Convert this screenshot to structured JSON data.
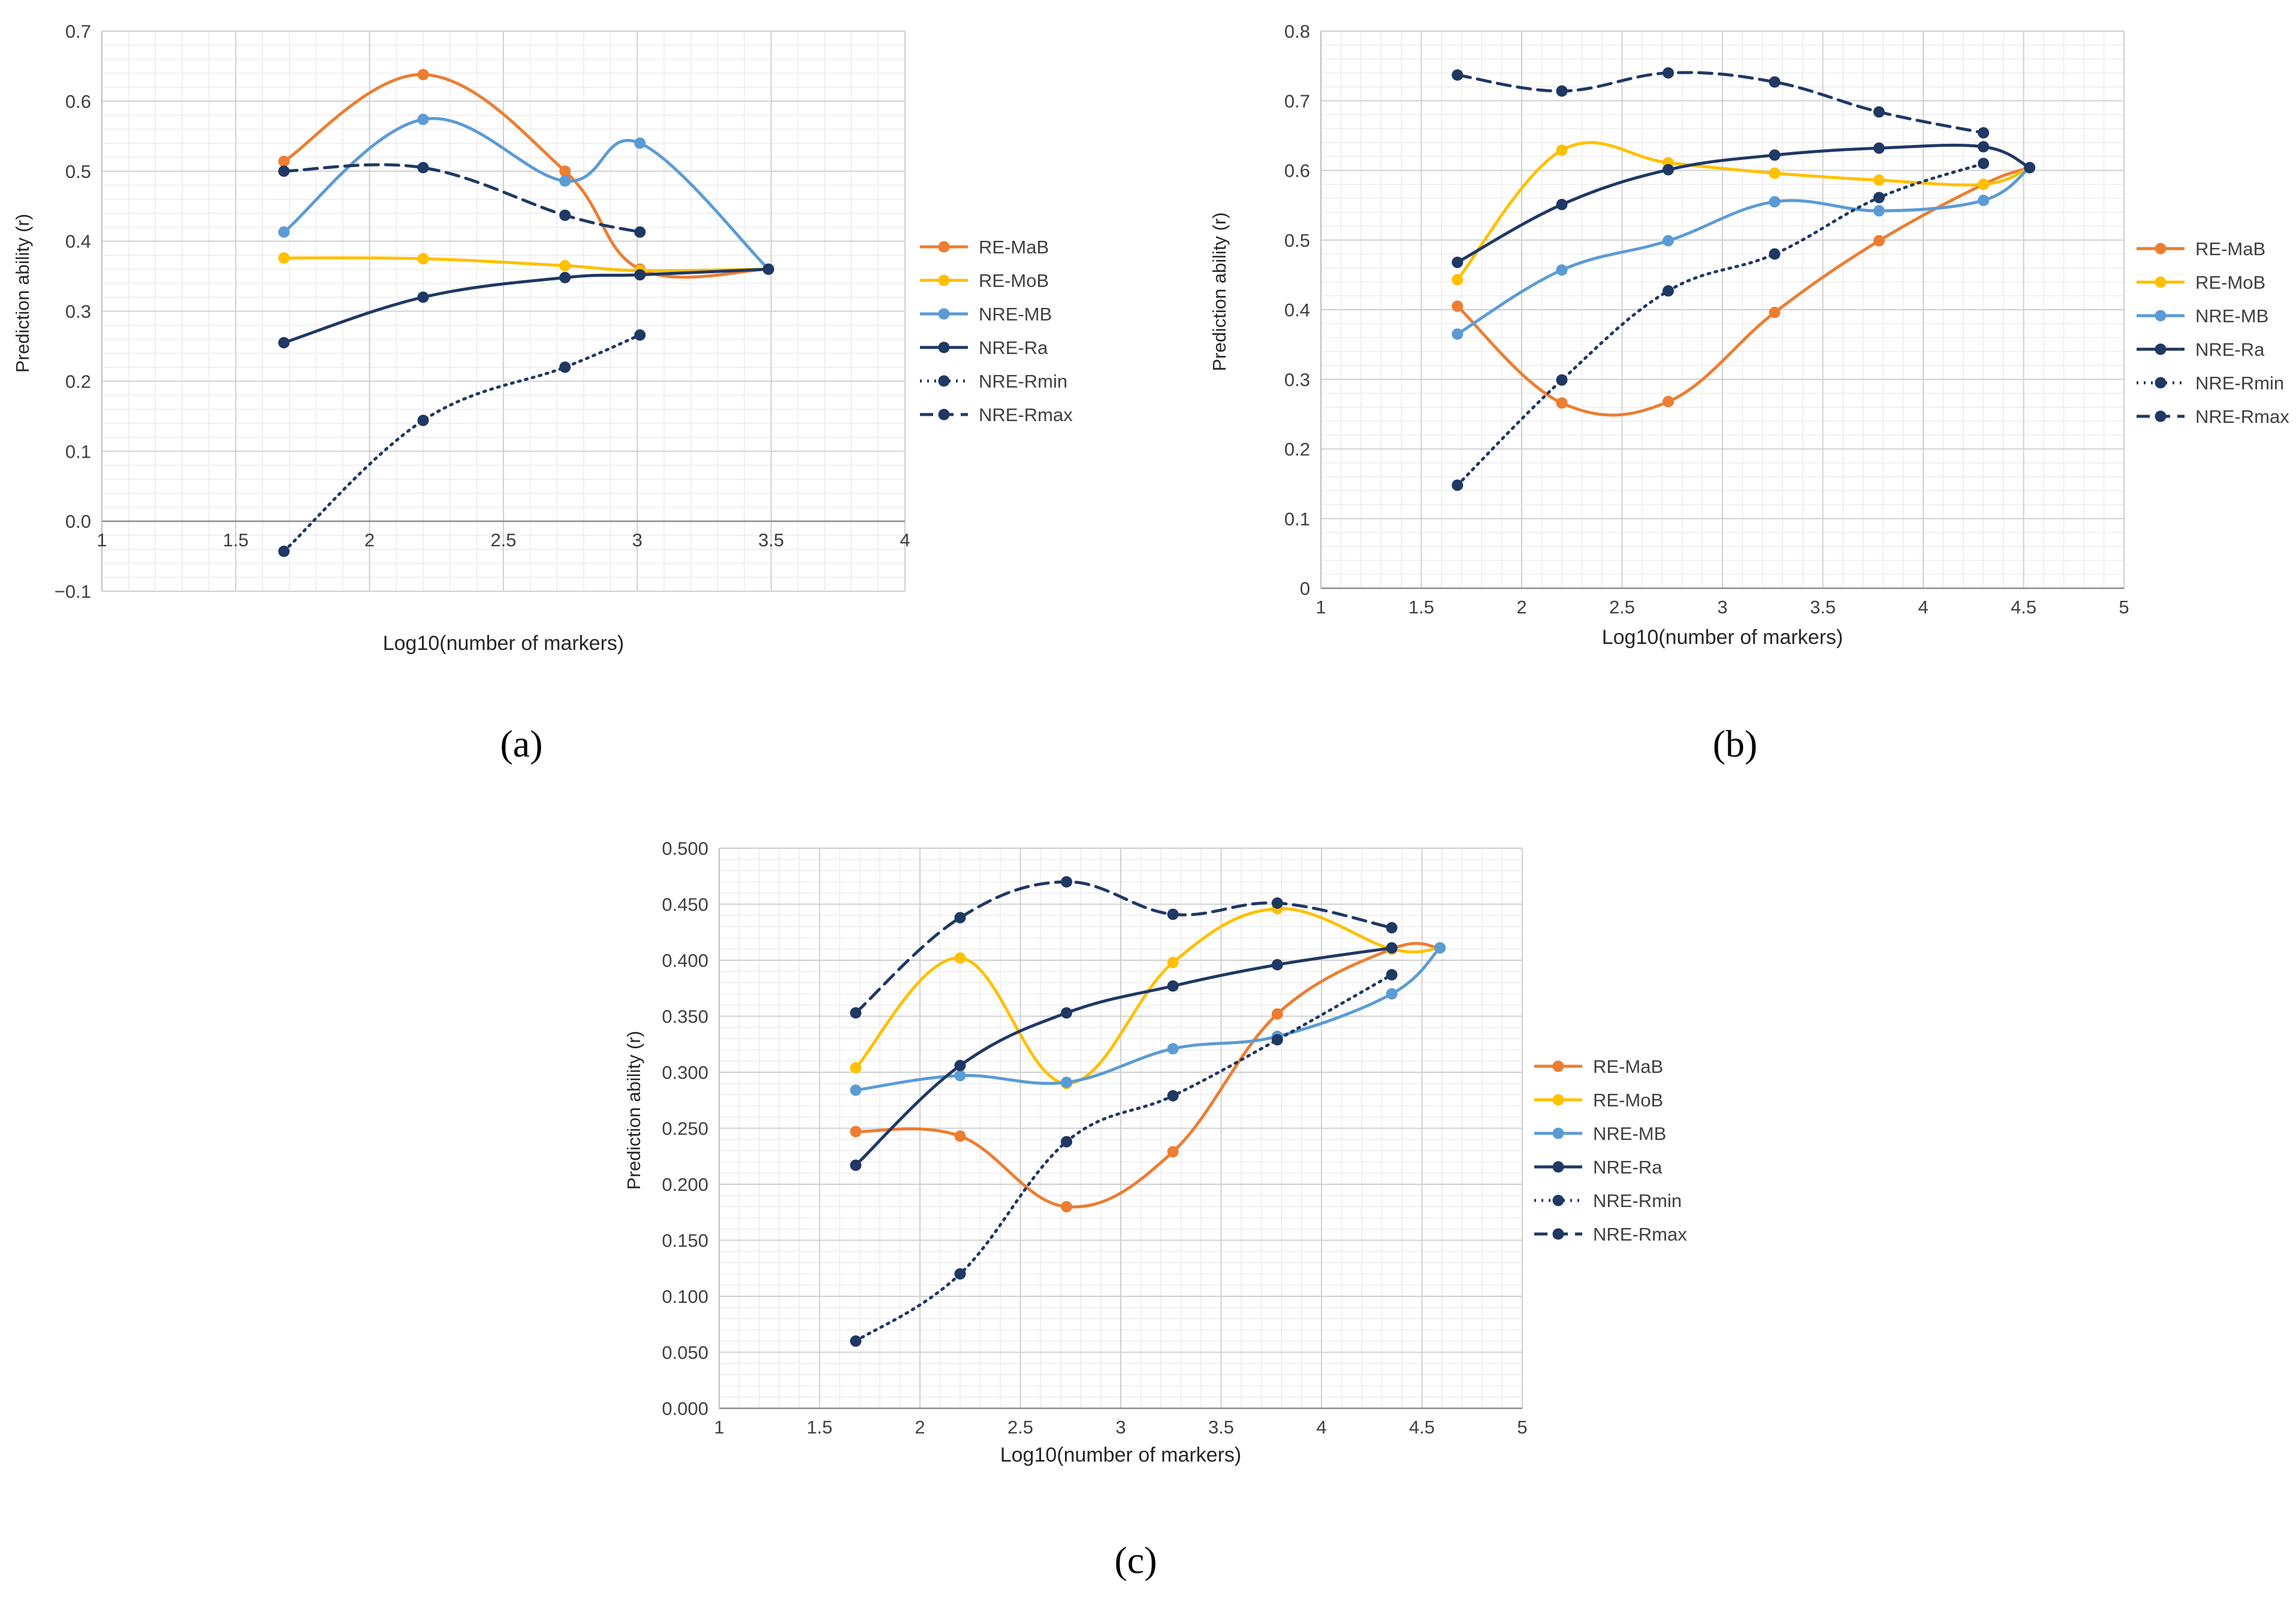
{
  "series_colors": {
    "RE-MaB": "#ED7D31",
    "RE-MoB": "#FFC000",
    "NRE-MB": "#5B9BD5",
    "NRE-Ra": "#1F3864",
    "NRE-Rmin": "#1F3864",
    "NRE-Rmax": "#1F3864"
  },
  "chart_data": [
    {
      "type": "line",
      "panel": "a",
      "caption": "(a)",
      "xlabel": "Log10(number of markers)",
      "ylabel": "Prediction ability (r)",
      "xlim": [
        1,
        4
      ],
      "ylim": [
        -0.1,
        0.7
      ],
      "xticks": [
        1,
        1.5,
        2,
        2.5,
        3,
        3.5,
        4
      ],
      "xtick_labels": [
        "1",
        "1.5",
        "2",
        "2.5",
        "3",
        "3.5",
        "4"
      ],
      "yticks": [
        -0.1,
        0,
        0.1,
        0.2,
        0.3,
        0.4,
        0.5,
        0.6,
        0.7
      ],
      "ytick_labels": [
        "−0.1",
        "0.0",
        "0.1",
        "0.2",
        "0.3",
        "0.4",
        "0.5",
        "0.6",
        "0.7"
      ],
      "grid": true,
      "legend": "right",
      "series": [
        {
          "name": "RE-MaB",
          "style": "solid",
          "points": [
            [
              1.68,
              0.514
            ],
            [
              2.2,
              0.638
            ],
            [
              2.73,
              0.5
            ],
            [
              3.01,
              0.36
            ],
            [
              3.49,
              0.36
            ]
          ]
        },
        {
          "name": "RE-MoB",
          "style": "solid",
          "points": [
            [
              1.68,
              0.376
            ],
            [
              2.2,
              0.375
            ],
            [
              2.73,
              0.365
            ],
            [
              3.01,
              0.358
            ],
            [
              3.49,
              0.36
            ]
          ]
        },
        {
          "name": "NRE-MB",
          "style": "solid",
          "points": [
            [
              1.68,
              0.413
            ],
            [
              2.2,
              0.574
            ],
            [
              2.73,
              0.486
            ],
            [
              3.01,
              0.54
            ],
            [
              3.49,
              0.36
            ]
          ]
        },
        {
          "name": "NRE-Ra",
          "style": "solid",
          "points": [
            [
              1.68,
              0.255
            ],
            [
              2.2,
              0.32
            ],
            [
              2.73,
              0.348
            ],
            [
              3.01,
              0.352
            ],
            [
              3.49,
              0.36
            ]
          ]
        },
        {
          "name": "NRE-Rmin",
          "style": "dotted",
          "points": [
            [
              1.68,
              -0.043
            ],
            [
              2.2,
              0.144
            ],
            [
              2.73,
              0.22
            ],
            [
              3.01,
              0.266
            ]
          ]
        },
        {
          "name": "NRE-Rmax",
          "style": "dashed",
          "points": [
            [
              1.68,
              0.5
            ],
            [
              2.2,
              0.505
            ],
            [
              2.73,
              0.437
            ],
            [
              3.01,
              0.413
            ]
          ]
        }
      ]
    },
    {
      "type": "line",
      "panel": "b",
      "caption": "(b)",
      "xlabel": "Log10(number of markers)",
      "ylabel": "Prediction ability (r)",
      "xlim": [
        1,
        5
      ],
      "ylim": [
        0,
        0.8
      ],
      "xticks": [
        1,
        1.5,
        2,
        2.5,
        3,
        3.5,
        4,
        4.5,
        5
      ],
      "xtick_labels": [
        "1",
        "1.5",
        "2",
        "2.5",
        "3",
        "3.5",
        "4",
        "4.5",
        "5"
      ],
      "yticks": [
        0,
        0.1,
        0.2,
        0.3,
        0.4,
        0.5,
        0.6,
        0.7,
        0.8
      ],
      "ytick_labels": [
        "0",
        "0.1",
        "0.2",
        "0.3",
        "0.4",
        "0.5",
        "0.6",
        "0.7",
        "0.8"
      ],
      "grid": true,
      "legend": "right",
      "series": [
        {
          "name": "RE-MaB",
          "style": "solid",
          "points": [
            [
              1.68,
              0.405
            ],
            [
              2.2,
              0.266
            ],
            [
              2.73,
              0.268
            ],
            [
              3.26,
              0.396
            ],
            [
              3.78,
              0.499
            ],
            [
              4.3,
              0.58
            ],
            [
              4.53,
              0.604
            ]
          ]
        },
        {
          "name": "RE-MoB",
          "style": "solid",
          "points": [
            [
              1.68,
              0.443
            ],
            [
              2.2,
              0.629
            ],
            [
              2.73,
              0.611
            ],
            [
              3.26,
              0.596
            ],
            [
              3.78,
              0.586
            ],
            [
              4.3,
              0.58
            ],
            [
              4.53,
              0.604
            ]
          ]
        },
        {
          "name": "NRE-MB",
          "style": "solid",
          "points": [
            [
              1.68,
              0.365
            ],
            [
              2.2,
              0.457
            ],
            [
              2.73,
              0.499
            ],
            [
              3.26,
              0.555
            ],
            [
              3.78,
              0.542
            ],
            [
              4.3,
              0.557
            ],
            [
              4.53,
              0.604
            ]
          ]
        },
        {
          "name": "NRE-Ra",
          "style": "solid",
          "points": [
            [
              1.68,
              0.468
            ],
            [
              2.2,
              0.551
            ],
            [
              2.73,
              0.601
            ],
            [
              3.26,
              0.622
            ],
            [
              3.78,
              0.632
            ],
            [
              4.3,
              0.634
            ],
            [
              4.53,
              0.604
            ]
          ]
        },
        {
          "name": "NRE-Rmin",
          "style": "dotted",
          "points": [
            [
              1.68,
              0.148
            ],
            [
              2.2,
              0.299
            ],
            [
              2.73,
              0.427
            ],
            [
              3.26,
              0.48
            ],
            [
              3.78,
              0.561
            ],
            [
              4.3,
              0.61
            ]
          ]
        },
        {
          "name": "NRE-Rmax",
          "style": "dashed",
          "points": [
            [
              1.68,
              0.737
            ],
            [
              2.2,
              0.714
            ],
            [
              2.73,
              0.74
            ],
            [
              3.26,
              0.727
            ],
            [
              3.78,
              0.684
            ],
            [
              4.3,
              0.654
            ]
          ]
        }
      ]
    },
    {
      "type": "line",
      "panel": "c",
      "caption": "(c)",
      "xlabel": "Log10(number of markers)",
      "ylabel": "Prediction ability (r)",
      "xlim": [
        1,
        5
      ],
      "ylim": [
        0,
        0.5
      ],
      "xticks": [
        1,
        1.5,
        2,
        2.5,
        3,
        3.5,
        4,
        4.5,
        5
      ],
      "xtick_labels": [
        "1",
        "1.5",
        "2",
        "2.5",
        "3",
        "3.5",
        "4",
        "4.5",
        "5"
      ],
      "yticks": [
        0,
        0.05,
        0.1,
        0.15,
        0.2,
        0.25,
        0.3,
        0.35,
        0.4,
        0.45,
        0.5
      ],
      "ytick_labels": [
        "0.000",
        "0.050",
        "0.100",
        "0.150",
        "0.200",
        "0.250",
        "0.300",
        "0.350",
        "0.400",
        "0.450",
        "0.500"
      ],
      "grid": true,
      "legend": "right",
      "series": [
        {
          "name": "RE-MaB",
          "style": "solid",
          "points": [
            [
              1.68,
              0.247
            ],
            [
              2.2,
              0.243
            ],
            [
              2.73,
              0.18
            ],
            [
              3.26,
              0.229
            ],
            [
              3.78,
              0.352
            ],
            [
              4.35,
              0.41
            ],
            [
              4.59,
              0.411
            ]
          ]
        },
        {
          "name": "RE-MoB",
          "style": "solid",
          "points": [
            [
              1.68,
              0.304
            ],
            [
              2.2,
              0.402
            ],
            [
              2.73,
              0.29
            ],
            [
              3.26,
              0.398
            ],
            [
              3.78,
              0.446
            ],
            [
              4.35,
              0.41
            ],
            [
              4.59,
              0.411
            ]
          ]
        },
        {
          "name": "NRE-MB",
          "style": "solid",
          "points": [
            [
              1.68,
              0.284
            ],
            [
              2.2,
              0.297
            ],
            [
              2.73,
              0.291
            ],
            [
              3.26,
              0.321
            ],
            [
              3.78,
              0.332
            ],
            [
              4.35,
              0.37
            ],
            [
              4.59,
              0.411
            ]
          ]
        },
        {
          "name": "NRE-Ra",
          "style": "solid",
          "points": [
            [
              1.68,
              0.217
            ],
            [
              2.2,
              0.306
            ],
            [
              2.73,
              0.353
            ],
            [
              3.26,
              0.377
            ],
            [
              3.78,
              0.396
            ],
            [
              4.35,
              0.411
            ]
          ]
        },
        {
          "name": "NRE-Rmin",
          "style": "dotted",
          "points": [
            [
              1.68,
              0.06
            ],
            [
              2.2,
              0.12
            ],
            [
              2.73,
              0.238
            ],
            [
              3.26,
              0.279
            ],
            [
              3.78,
              0.329
            ],
            [
              4.35,
              0.387
            ]
          ]
        },
        {
          "name": "NRE-Rmax",
          "style": "dashed",
          "points": [
            [
              1.68,
              0.353
            ],
            [
              2.2,
              0.438
            ],
            [
              2.73,
              0.47
            ],
            [
              3.26,
              0.441
            ],
            [
              3.78,
              0.451
            ],
            [
              4.35,
              0.429
            ]
          ]
        }
      ]
    }
  ]
}
